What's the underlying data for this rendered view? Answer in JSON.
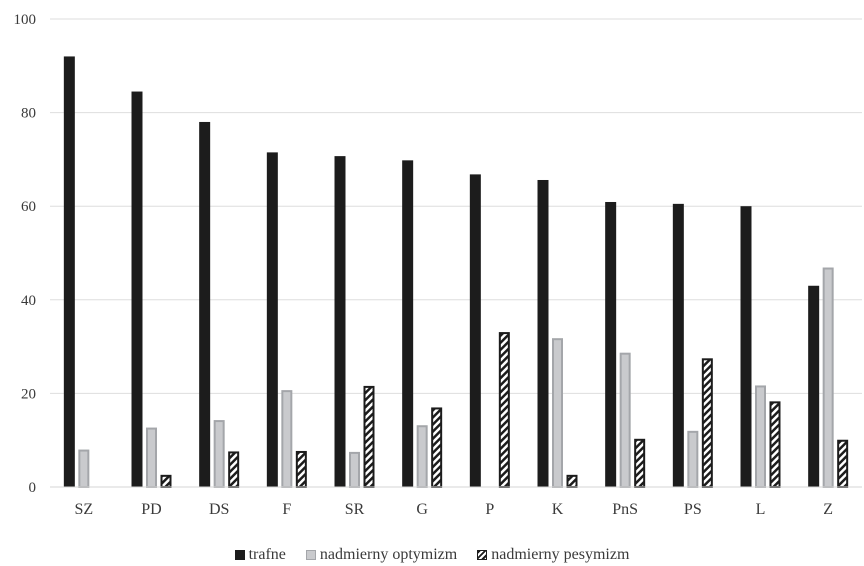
{
  "chart_data": {
    "type": "bar",
    "categories": [
      "SZ",
      "PD",
      "DS",
      "F",
      "SR",
      "G",
      "P",
      "K",
      "PnS",
      "PS",
      "L",
      "Z"
    ],
    "series": [
      {
        "name": "trafne",
        "color": "#1c1c1c",
        "style": "solid",
        "values": [
          92,
          84.5,
          78,
          71.5,
          70.7,
          69.8,
          66.8,
          65.6,
          60.9,
          60.5,
          60,
          43
        ]
      },
      {
        "name": "nadmierny optymizm",
        "color": "#c9cacd",
        "style": "outlined",
        "values": [
          8,
          12.7,
          14.3,
          20.7,
          7.5,
          13.2,
          0,
          31.8,
          28.7,
          12,
          21.7,
          46.9
        ]
      },
      {
        "name": "nadmierny pesymizm",
        "color": "#1c1c1c",
        "style": "hatched",
        "values": [
          0,
          2.6,
          7.6,
          7.7,
          21.6,
          17,
          33.1,
          2.6,
          10.3,
          27.5,
          18.3,
          10.1
        ]
      }
    ],
    "ylim": [
      0,
      100
    ],
    "yticks": [
      "0",
      "20",
      "40",
      "60",
      "80",
      "100"
    ],
    "grid": true,
    "legend_position": "bottom",
    "title": "",
    "xlabel": "",
    "ylabel": ""
  }
}
